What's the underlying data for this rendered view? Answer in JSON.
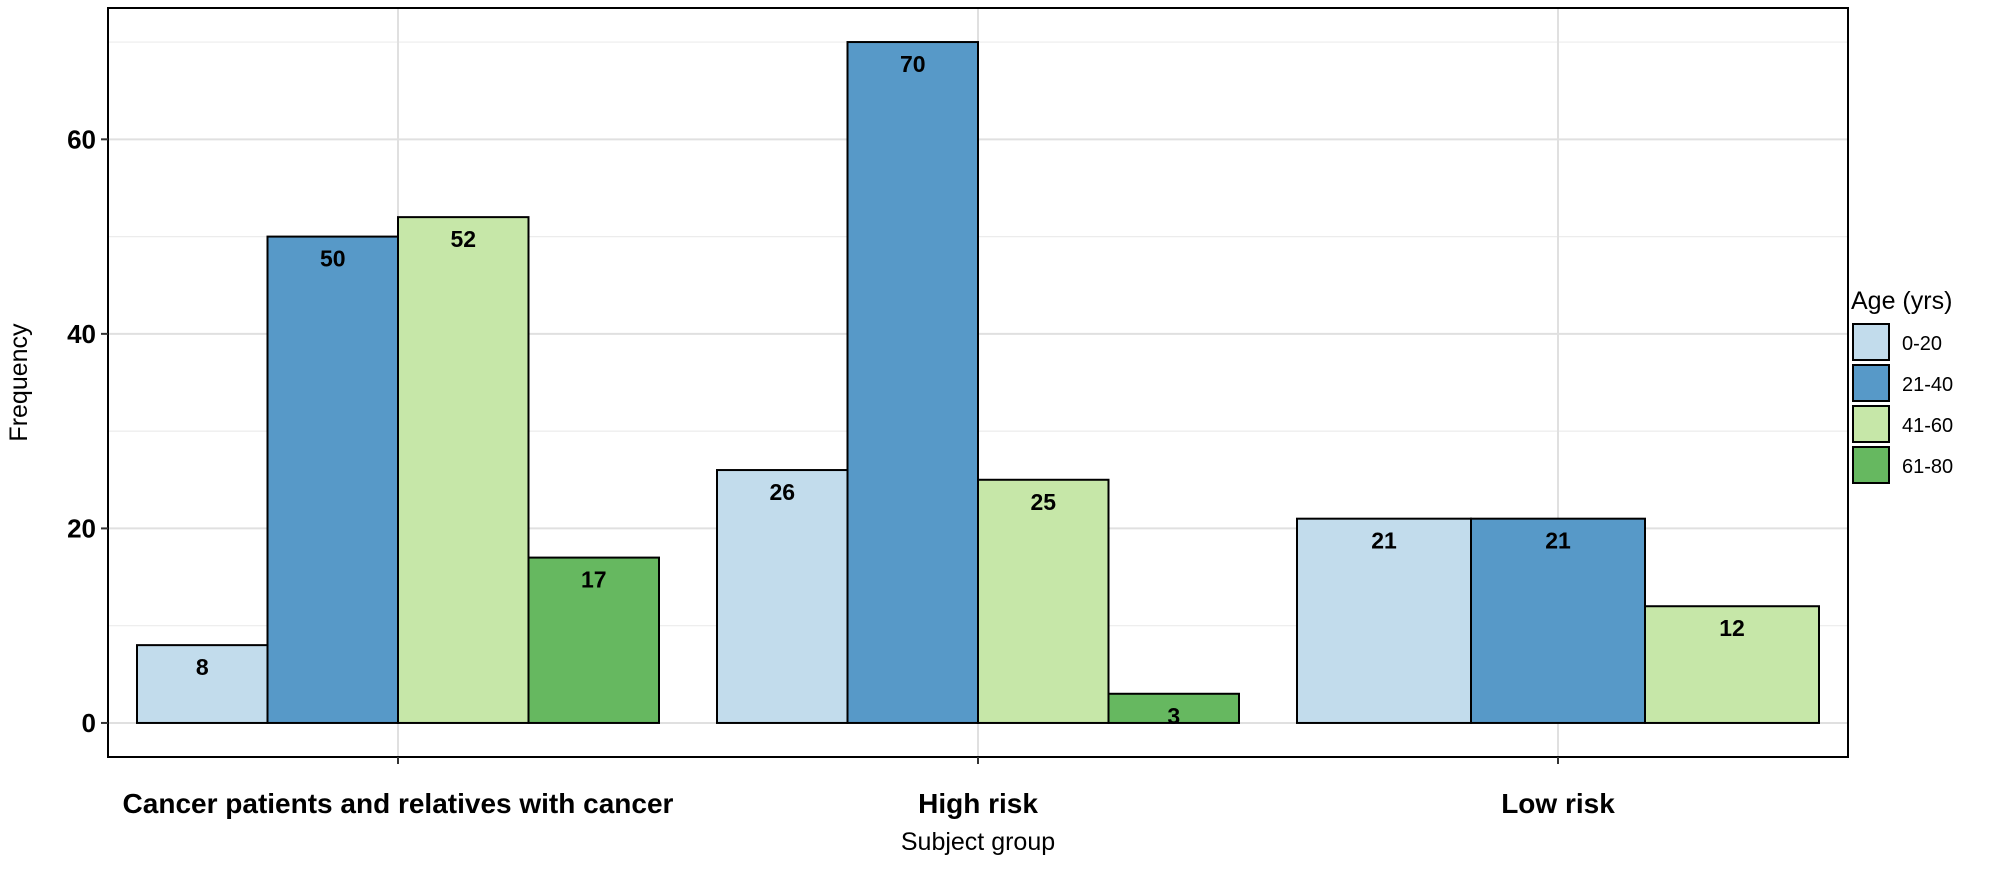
{
  "chart_data": {
    "type": "bar",
    "categories": [
      "Cancer patients and relatives with cancer",
      "High risk",
      "Low risk"
    ],
    "series": [
      {
        "name": "0-20",
        "color": "#c2dcec",
        "values": [
          8,
          26,
          21
        ]
      },
      {
        "name": "21-40",
        "color": "#5799c8",
        "values": [
          50,
          70,
          21
        ]
      },
      {
        "name": "41-60",
        "color": "#c6e7a8",
        "values": [
          52,
          25,
          12
        ]
      },
      {
        "name": "61-80",
        "color": "#66b860",
        "values": [
          17,
          3,
          null
        ]
      }
    ],
    "xlabel": "Subject group",
    "ylabel": "Frequency",
    "ylim": [
      -3.5,
      73.5
    ],
    "yticks": [
      "0",
      "20",
      "40",
      "60"
    ],
    "legend_title": "Age (yrs)",
    "legend_position": "right",
    "grid": true
  }
}
